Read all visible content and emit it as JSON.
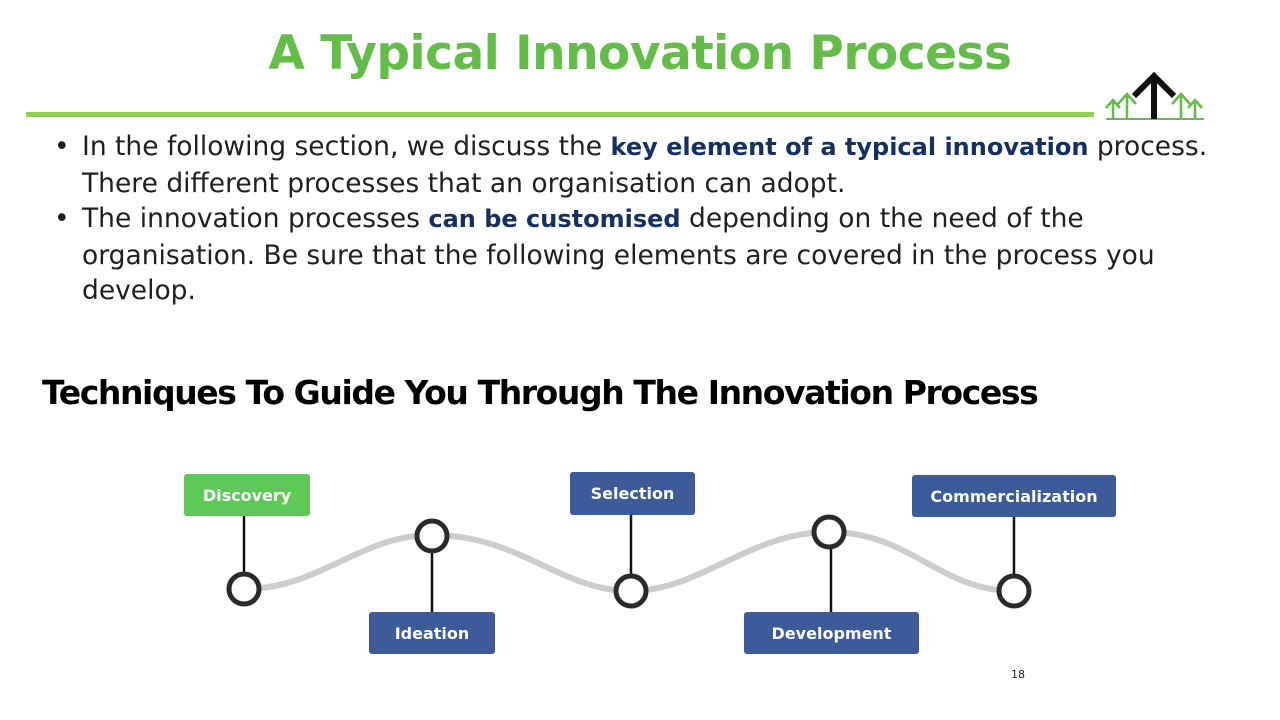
{
  "title": "A Typical Innovation Process",
  "bullets": [
    {
      "before": "In the following section, we discuss the ",
      "highlight": "key element of a typical innovation",
      "after": " process.  There different processes that an organisation can adopt."
    },
    {
      "before": "The innovation processes ",
      "highlight": "can be customised",
      "after": " depending on the need of the organisation.  Be sure that the following elements are covered in the process you develop."
    }
  ],
  "bullet_symbol": "•",
  "subtitle": "Techniques To Guide  You Through The Innovation Process",
  "steps": [
    {
      "label": "Discovery",
      "color": "#5fc957"
    },
    {
      "label": "Ideation",
      "color": "#3d5a99"
    },
    {
      "label": "Selection",
      "color": "#3d5a99"
    },
    {
      "label": "Development",
      "color": "#3d5a99"
    },
    {
      "label": "Commercialization",
      "color": "#3d5a99"
    }
  ],
  "page_number": "18",
  "colors": {
    "title_green": "#63bd48",
    "highlight_navy": "#15305e",
    "step_blue": "#3d5a99",
    "step_green": "#5fc957"
  },
  "logo_icon": "upward-arrows-logo-icon"
}
